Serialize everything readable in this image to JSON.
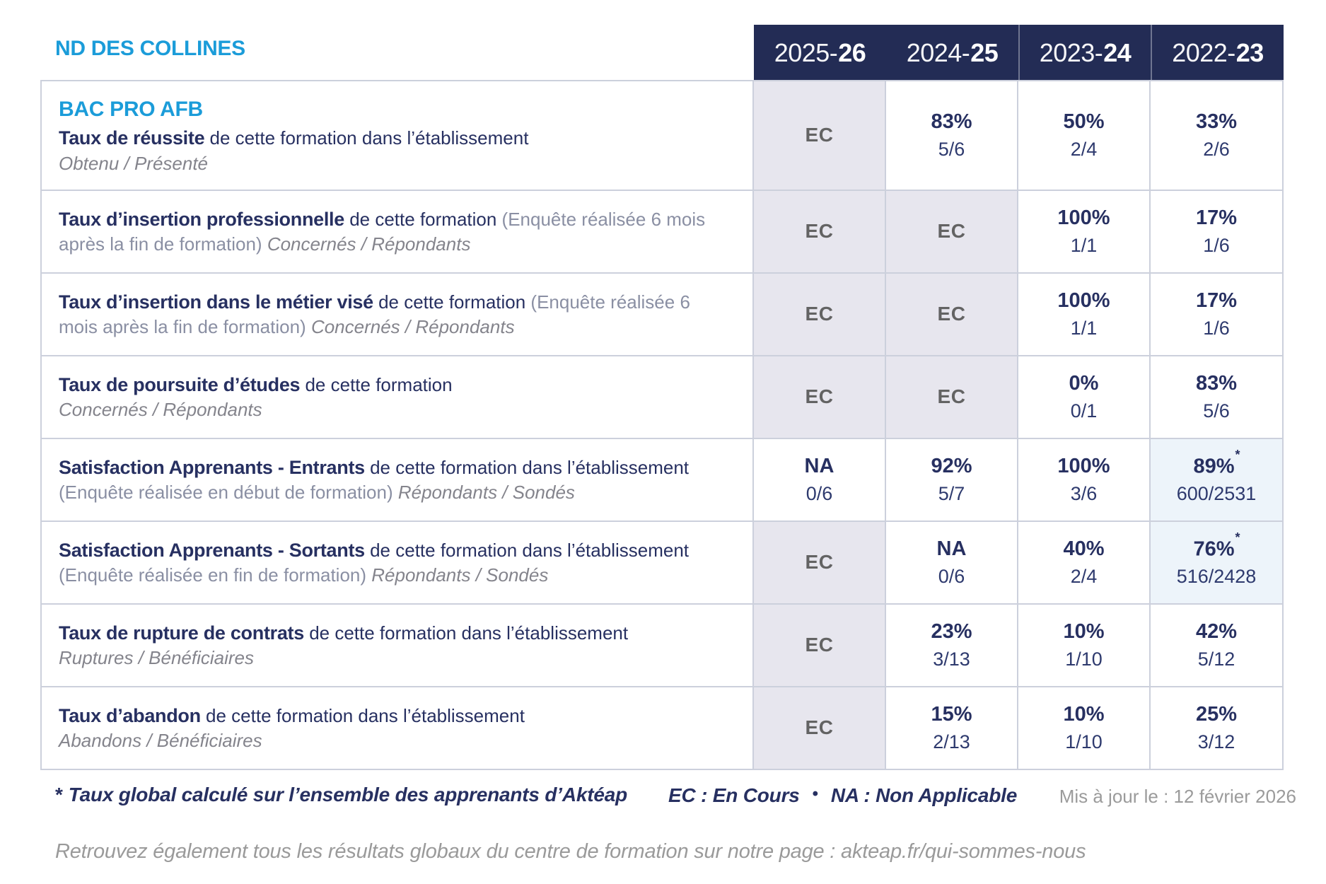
{
  "brand": {
    "school": "ND DES COLLINES"
  },
  "colors": {
    "accent_blue": "#1b9cd9",
    "navy_text": "#273061",
    "header_background": "#232c55",
    "ec_cell_background": "#e7e6ee",
    "ec_text": "#636363",
    "star_cell_background": "#edf4fa",
    "grid_line": "#ccd0dc",
    "note_gray": "#9b9b9b"
  },
  "header": {
    "years": [
      {
        "pre": "2025-",
        "bold": "26"
      },
      {
        "pre": "2024-",
        "bold": "25"
      },
      {
        "pre": "2023-",
        "bold": "24"
      },
      {
        "pre": "2022-",
        "bold": "23"
      }
    ]
  },
  "table": {
    "rows": [
      {
        "heading": "BAC PRO AFB",
        "segments": [
          {
            "t": "Taux de réussite",
            "s": "bold"
          },
          {
            "t": " de cette formation dans l’établissement",
            "s": "reg"
          },
          {
            "t": "Obtenu / Présenté",
            "s": "sub",
            "br": true
          }
        ],
        "values": [
          {
            "main": "EC",
            "kind": "ec"
          },
          {
            "main": "83%",
            "frac": "5/6",
            "kind": "val"
          },
          {
            "main": "50%",
            "frac": "2/4",
            "kind": "val"
          },
          {
            "main": "33%",
            "frac": "2/6",
            "kind": "val"
          }
        ]
      },
      {
        "segments": [
          {
            "t": "Taux d’insertion professionnelle",
            "s": "bold"
          },
          {
            "t": " de cette formation ",
            "s": "reg"
          },
          {
            "t": "(Enquête réalisée 6 mois après la fin de formation) ",
            "s": "paren"
          },
          {
            "t": "Concernés / Répondants",
            "s": "sub"
          }
        ],
        "values": [
          {
            "main": "EC",
            "kind": "ec"
          },
          {
            "main": "EC",
            "kind": "ec"
          },
          {
            "main": "100%",
            "frac": "1/1",
            "kind": "val"
          },
          {
            "main": "17%",
            "frac": "1/6",
            "kind": "val"
          }
        ]
      },
      {
        "segments": [
          {
            "t": "Taux d’insertion dans le métier visé",
            "s": "bold"
          },
          {
            "t": " de cette formation ",
            "s": "reg"
          },
          {
            "t": "(Enquête réalisée 6 mois après la fin de formation) ",
            "s": "paren"
          },
          {
            "t": "Concernés / Répondants",
            "s": "sub"
          }
        ],
        "values": [
          {
            "main": "EC",
            "kind": "ec"
          },
          {
            "main": "EC",
            "kind": "ec"
          },
          {
            "main": "100%",
            "frac": "1/1",
            "kind": "val"
          },
          {
            "main": "17%",
            "frac": "1/6",
            "kind": "val"
          }
        ]
      },
      {
        "segments": [
          {
            "t": "Taux de poursuite d’études",
            "s": "bold"
          },
          {
            "t": " de cette formation",
            "s": "reg"
          },
          {
            "t": "Concernés / Répondants",
            "s": "sub",
            "br": true
          }
        ],
        "values": [
          {
            "main": "EC",
            "kind": "ec"
          },
          {
            "main": "EC",
            "kind": "ec"
          },
          {
            "main": "0%",
            "frac": "0/1",
            "kind": "val"
          },
          {
            "main": "83%",
            "frac": "5/6",
            "kind": "val"
          }
        ]
      },
      {
        "segments": [
          {
            "t": "Satisfaction Apprenants - Entrants",
            "s": "bold"
          },
          {
            "t": " de cette formation dans l’établissement ",
            "s": "reg"
          },
          {
            "t": "(Enquête réalisée en début de formation) ",
            "s": "paren"
          },
          {
            "t": "Répondants / Sondés",
            "s": "sub"
          }
        ],
        "values": [
          {
            "main": "NA",
            "frac": "0/6",
            "kind": "val"
          },
          {
            "main": "92%",
            "frac": "5/7",
            "kind": "val"
          },
          {
            "main": "100%",
            "frac": "3/6",
            "kind": "val"
          },
          {
            "main": "89%",
            "frac": "600/2531",
            "star": true,
            "kind": "star"
          }
        ]
      },
      {
        "segments": [
          {
            "t": "Satisfaction Apprenants - Sortants",
            "s": "bold"
          },
          {
            "t": " de cette formation dans l’établissement ",
            "s": "reg"
          },
          {
            "t": "(Enquête réalisée en fin de formation) ",
            "s": "paren"
          },
          {
            "t": "Répondants / Sondés",
            "s": "sub"
          }
        ],
        "values": [
          {
            "main": "EC",
            "kind": "ec"
          },
          {
            "main": "NA",
            "frac": "0/6",
            "kind": "val"
          },
          {
            "main": "40%",
            "frac": "2/4",
            "kind": "val"
          },
          {
            "main": "76%",
            "frac": "516/2428",
            "star": true,
            "kind": "star"
          }
        ]
      },
      {
        "segments": [
          {
            "t": "Taux de rupture de contrats",
            "s": "bold"
          },
          {
            "t": " de cette formation dans l’établissement",
            "s": "reg"
          },
          {
            "t": "Ruptures / Bénéficiaires",
            "s": "sub",
            "br": true
          }
        ],
        "values": [
          {
            "main": "EC",
            "kind": "ec"
          },
          {
            "main": "23%",
            "frac": "3/13",
            "kind": "val"
          },
          {
            "main": "10%",
            "frac": "1/10",
            "kind": "val"
          },
          {
            "main": "42%",
            "frac": "5/12",
            "kind": "val"
          }
        ]
      },
      {
        "segments": [
          {
            "t": "Taux d’abandon",
            "s": "bold"
          },
          {
            "t": " de cette formation dans l’établissement",
            "s": "reg"
          },
          {
            "t": "Abandons / Bénéficiaires",
            "s": "sub",
            "br": true
          }
        ],
        "values": [
          {
            "main": "EC",
            "kind": "ec"
          },
          {
            "main": "15%",
            "frac": "2/13",
            "kind": "val"
          },
          {
            "main": "10%",
            "frac": "1/10",
            "kind": "val"
          },
          {
            "main": "25%",
            "frac": "3/12",
            "kind": "val"
          }
        ]
      }
    ]
  },
  "footer": {
    "star_symbol": "*",
    "star_note": "Taux global calculé sur l’ensemble des apprenants d’Aktéap",
    "legend_ec": "EC : En Cours",
    "legend_separator": "•",
    "legend_na": "NA : Non Applicable",
    "updated": "Mis à jour le : 12 février 2026",
    "bottom_note": "Retrouvez également tous les résultats globaux du centre de formation sur notre page : akteap.fr/qui-sommes-nous"
  }
}
